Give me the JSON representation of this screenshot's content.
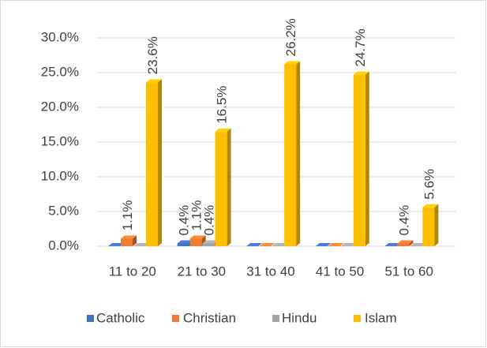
{
  "chart_data": {
    "type": "bar3d",
    "categories": [
      "11 to 20",
      "21 to 30",
      "31 to 40",
      "41 to 50",
      "51 to 60"
    ],
    "series": [
      {
        "name": "Catholic",
        "color": "#4472c4",
        "values": [
          0,
          0.4,
          0,
          0,
          0
        ],
        "value_labels": [
          null,
          "0.4%",
          null,
          null,
          null
        ]
      },
      {
        "name": "Christian",
        "color": "#ed7d31",
        "values": [
          1.1,
          1.1,
          0,
          0,
          0.4
        ],
        "value_labels": [
          "1.1%",
          "1.1%",
          null,
          null,
          "0.4%"
        ]
      },
      {
        "name": "Hindu",
        "color": "#a5a5a5",
        "values": [
          0,
          0.4,
          0,
          0,
          0
        ],
        "value_labels": [
          null,
          "0.4%",
          null,
          null,
          null
        ]
      },
      {
        "name": "Islam",
        "color": "#ffc000",
        "values": [
          23.6,
          16.5,
          26.2,
          24.7,
          5.6
        ],
        "value_labels": [
          "23.6%",
          "16.5%",
          "26.2%",
          "24.7%",
          "5.6%"
        ]
      }
    ],
    "ylim": [
      0,
      30
    ],
    "yticks": [
      {
        "value": 0,
        "label": "0.0%"
      },
      {
        "value": 5,
        "label": "5.0%"
      },
      {
        "value": 10,
        "label": "10.0%"
      },
      {
        "value": 15,
        "label": "15.0%"
      },
      {
        "value": 20,
        "label": "20.0%"
      },
      {
        "value": 25,
        "label": "25.0%"
      },
      {
        "value": 30,
        "label": "30.0%"
      }
    ],
    "grid": true,
    "legend": "bottom"
  }
}
